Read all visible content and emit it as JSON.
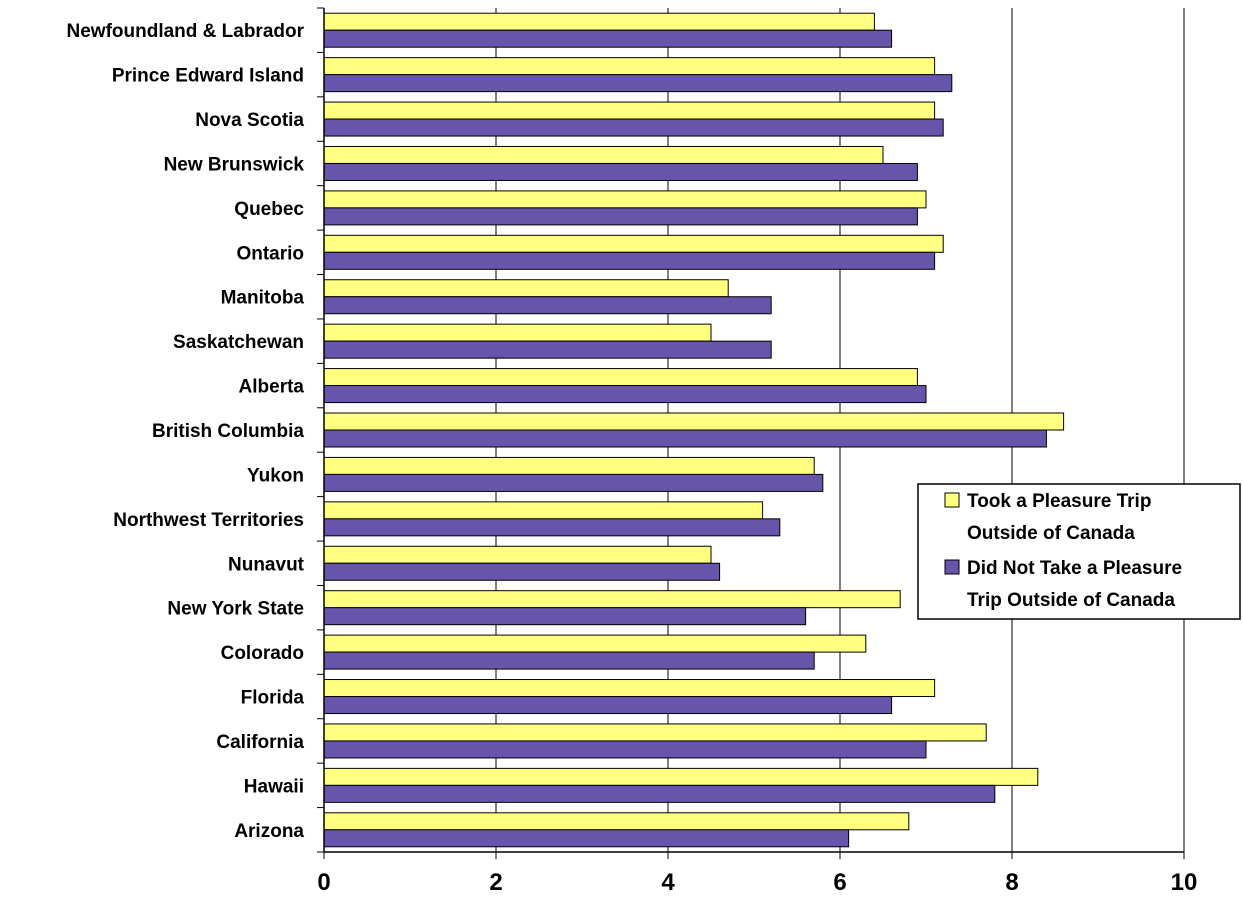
{
  "chart_data": {
    "type": "bar",
    "orientation": "horizontal",
    "categories": [
      "Newfoundland & Labrador",
      "Prince Edward Island",
      "Nova Scotia",
      "New Brunswick",
      "Quebec",
      "Ontario",
      "Manitoba",
      "Saskatchewan",
      "Alberta",
      "British Columbia",
      "Yukon",
      "Northwest Territories",
      "Nunavut",
      "New York State",
      "Colorado",
      "Florida",
      "California",
      "Hawaii",
      "Arizona"
    ],
    "series": [
      {
        "name": "Took a Pleasure Trip Outside of Canada",
        "legend_lines": [
          "Took a Pleasure Trip",
          "Outside of Canada"
        ],
        "color": "#FFFF80",
        "values": [
          6.4,
          7.1,
          7.1,
          6.5,
          7.0,
          7.2,
          4.7,
          4.5,
          6.9,
          8.6,
          5.7,
          5.1,
          4.5,
          6.7,
          6.3,
          7.1,
          7.7,
          8.3,
          6.8
        ]
      },
      {
        "name": "Did Not Take a Pleasure Trip Outside of Canada",
        "legend_lines": [
          "Did Not Take a Pleasure",
          "Trip Outside of Canada"
        ],
        "color": "#6655AA",
        "values": [
          6.6,
          7.3,
          7.2,
          6.9,
          6.9,
          7.1,
          5.2,
          5.2,
          7.0,
          8.4,
          5.8,
          5.3,
          4.6,
          5.6,
          5.7,
          6.6,
          7.0,
          7.8,
          6.1
        ]
      }
    ],
    "xlim": [
      0,
      10
    ],
    "xticks": [
      0,
      2,
      4,
      6,
      8,
      10
    ],
    "xtick_labels": [
      "0",
      "2",
      "4",
      "6",
      "8",
      "10"
    ],
    "grid": "vertical",
    "legend": "right",
    "title": "",
    "xlabel": "",
    "ylabel": ""
  }
}
